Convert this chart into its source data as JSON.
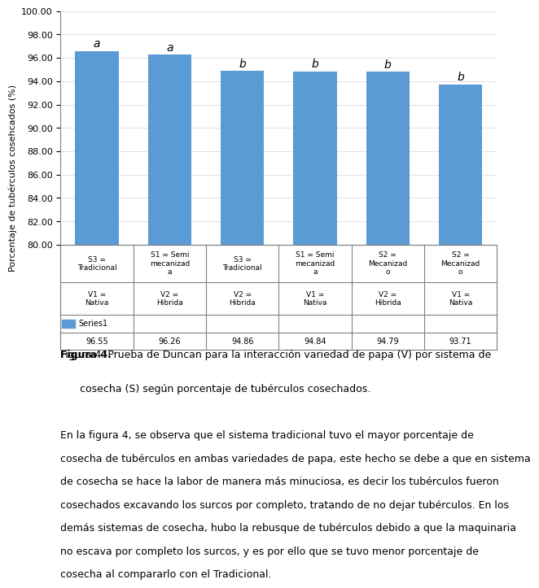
{
  "values": [
    96.55,
    96.26,
    94.86,
    94.84,
    94.79,
    93.71
  ],
  "labels_line1": [
    "S3 =\nTradicional",
    "S1 = Semi\nmecanizad\na",
    "S3 =\nTradicional",
    "S1 = Semi\nmecanizad\na",
    "S2 =\nMecanizad\no",
    "S2 =\nMecanizad\no"
  ],
  "labels_line2": [
    "V1 =\nNativa",
    "V2 =\nHibrida",
    "V2 =\nHibrida",
    "V1 =\nNativa",
    "V2 =\nHibrida",
    "V1 =\nNativa"
  ],
  "duncan_labels": [
    "a",
    "a",
    "b",
    "b",
    "b",
    "b"
  ],
  "bar_color": "#5B9BD5",
  "ylim": [
    80.0,
    100.0
  ],
  "yticks": [
    80.0,
    82.0,
    84.0,
    86.0,
    88.0,
    90.0,
    92.0,
    94.0,
    96.0,
    98.0,
    100.0
  ],
  "ylabel": "Porcentaje de tubérculos cosehcados (%)",
  "legend_label": "Series1",
  "series_values_row": [
    "96.55",
    "96.26",
    "94.86",
    "94.84",
    "94.79",
    "93.71"
  ],
  "figure_caption_bold": "Figura 4.",
  "figure_caption_rest": " Prueba de Duncan para la interacción variedad de papa (V) por sistema de cosecha (S) según porcentaje de tubérculos cosechados.",
  "body_text": "En la figura 4, se observa que el sistema tradicional tuvo el mayor porcentaje de cosecha de tubérculos en ambas variedades de papa, este hecho se debe a que en sistema de cosecha se hace la labor de manera más minuciosa, es decir los tubérculos fueron cosechados excavando los surcos por completo, tratando de no dejar tubérculos. En los demás sistemas de cosecha, hubo la rebusque de tubérculos debido a que la maquinaria no escava por completo los surcos, y es por ello que se tuvo menor porcentaje de cosecha al compararlo con el Tradicional.",
  "background_color": "#FFFFFF"
}
